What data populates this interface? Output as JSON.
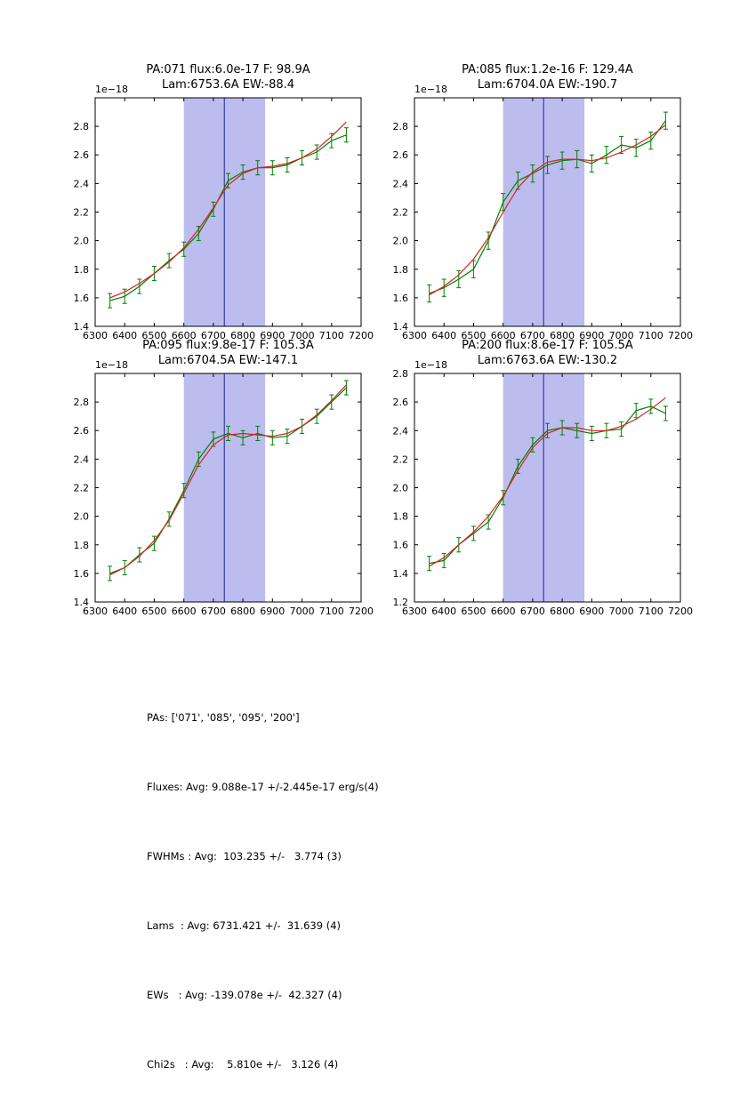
{
  "figure": {
    "background": "#ffffff"
  },
  "colors": {
    "data": "#007f00",
    "fit": "#d62222",
    "band": "#bcbcef",
    "vline": "#2020a0",
    "axis": "#000000"
  },
  "chart_data": [
    {
      "type": "line",
      "title_line1": "PA:071 flux:6.0e-17 F: 98.9A",
      "title_line2": "Lam:6753.6A EW:-88.4",
      "offset_label": "1e−18",
      "xlim": [
        6300,
        7200
      ],
      "ylim": [
        1.4,
        3.0
      ],
      "xticks": [
        6300,
        6400,
        6500,
        6600,
        6700,
        6800,
        6900,
        7000,
        7100,
        7200
      ],
      "yticks": [
        1.4,
        1.6,
        1.8,
        2.0,
        2.2,
        2.4,
        2.6,
        2.8
      ],
      "band": [
        6600,
        6875
      ],
      "vline": 6737,
      "x": [
        6350,
        6400,
        6450,
        6500,
        6550,
        6600,
        6650,
        6700,
        6750,
        6800,
        6850,
        6900,
        6950,
        7000,
        7050,
        7100,
        7150
      ],
      "series": [
        {
          "name": "spectrum",
          "values": [
            1.58,
            1.61,
            1.68,
            1.77,
            1.86,
            1.94,
            2.05,
            2.22,
            2.42,
            2.48,
            2.51,
            2.51,
            2.53,
            2.58,
            2.62,
            2.7,
            2.74
          ],
          "yerr": 0.05
        },
        {
          "name": "fit",
          "values": [
            1.6,
            1.64,
            1.7,
            1.77,
            1.85,
            1.95,
            2.08,
            2.23,
            2.39,
            2.47,
            2.51,
            2.52,
            2.54,
            2.58,
            2.64,
            2.73,
            2.83
          ]
        }
      ]
    },
    {
      "type": "line",
      "title_line1": "PA:085 flux:1.2e-16 F: 129.4A",
      "title_line2": "Lam:6704.0A EW:-190.7",
      "offset_label": "1e−18",
      "xlim": [
        6300,
        7200
      ],
      "ylim": [
        1.4,
        3.0
      ],
      "xticks": [
        6300,
        6400,
        6500,
        6600,
        6700,
        6800,
        6900,
        7000,
        7100,
        7200
      ],
      "yticks": [
        1.4,
        1.6,
        1.8,
        2.0,
        2.2,
        2.4,
        2.6,
        2.8
      ],
      "band": [
        6600,
        6875
      ],
      "vline": 6737,
      "x": [
        6350,
        6400,
        6450,
        6500,
        6550,
        6600,
        6650,
        6700,
        6750,
        6800,
        6850,
        6900,
        6950,
        7000,
        7050,
        7100,
        7150
      ],
      "series": [
        {
          "name": "spectrum",
          "values": [
            1.63,
            1.67,
            1.73,
            1.8,
            2.0,
            2.27,
            2.42,
            2.47,
            2.53,
            2.56,
            2.57,
            2.54,
            2.6,
            2.67,
            2.65,
            2.7,
            2.84
          ],
          "yerr": 0.06
        },
        {
          "name": "fit",
          "values": [
            1.62,
            1.68,
            1.76,
            1.87,
            2.02,
            2.2,
            2.37,
            2.48,
            2.55,
            2.57,
            2.57,
            2.56,
            2.58,
            2.62,
            2.67,
            2.73,
            2.81
          ]
        }
      ]
    },
    {
      "type": "line",
      "title_line1": "PA:095 flux:9.8e-17 F: 105.3A",
      "title_line2": "Lam:6704.5A EW:-147.1",
      "offset_label": "1e−18",
      "xlim": [
        6300,
        7200
      ],
      "ylim": [
        1.4,
        3.0
      ],
      "xticks": [
        6300,
        6400,
        6500,
        6600,
        6700,
        6800,
        6900,
        7000,
        7100,
        7200
      ],
      "yticks": [
        1.4,
        1.6,
        1.8,
        2.0,
        2.2,
        2.4,
        2.6,
        2.8
      ],
      "band": [
        6600,
        6875
      ],
      "vline": 6737,
      "x": [
        6350,
        6400,
        6450,
        6500,
        6550,
        6600,
        6650,
        6700,
        6750,
        6800,
        6850,
        6900,
        6950,
        7000,
        7050,
        7100,
        7150
      ],
      "series": [
        {
          "name": "spectrum",
          "values": [
            1.6,
            1.64,
            1.73,
            1.81,
            1.98,
            2.18,
            2.4,
            2.54,
            2.58,
            2.55,
            2.58,
            2.55,
            2.56,
            2.63,
            2.7,
            2.8,
            2.9
          ],
          "yerr": 0.05
        },
        {
          "name": "fit",
          "values": [
            1.59,
            1.64,
            1.72,
            1.83,
            1.97,
            2.16,
            2.36,
            2.5,
            2.57,
            2.58,
            2.57,
            2.56,
            2.58,
            2.63,
            2.71,
            2.81,
            2.92
          ]
        }
      ]
    },
    {
      "type": "line",
      "title_line1": "PA:200 flux:8.6e-17 F: 105.5A",
      "title_line2": "Lam:6763.6A EW:-130.2",
      "offset_label": "1e−18",
      "xlim": [
        6300,
        7200
      ],
      "ylim": [
        1.2,
        2.8
      ],
      "xticks": [
        6300,
        6400,
        6500,
        6600,
        6700,
        6800,
        6900,
        7000,
        7100,
        7200
      ],
      "yticks": [
        1.2,
        1.4,
        1.6,
        1.8,
        2.0,
        2.2,
        2.4,
        2.6,
        2.8
      ],
      "band": [
        6600,
        6875
      ],
      "vline": 6737,
      "x": [
        6350,
        6400,
        6450,
        6500,
        6550,
        6600,
        6650,
        6700,
        6750,
        6800,
        6850,
        6900,
        6950,
        7000,
        7050,
        7100,
        7150
      ],
      "series": [
        {
          "name": "spectrum",
          "values": [
            1.47,
            1.49,
            1.6,
            1.68,
            1.76,
            1.93,
            2.15,
            2.3,
            2.4,
            2.42,
            2.4,
            2.38,
            2.4,
            2.41,
            2.54,
            2.57,
            2.52
          ],
          "yerr": 0.05
        },
        {
          "name": "fit",
          "values": [
            1.45,
            1.51,
            1.6,
            1.69,
            1.8,
            1.94,
            2.12,
            2.28,
            2.38,
            2.42,
            2.42,
            2.4,
            2.4,
            2.43,
            2.48,
            2.55,
            2.63
          ]
        }
      ]
    }
  ],
  "summary": {
    "lines": [
      "PAs: ['071', '085', '095', '200']",
      "Fluxes: Avg: 9.088e-17 +/-2.445e-17 erg/s(4)",
      "FWHMs : Avg:  103.235 +/-   3.774 (3)",
      "Lams  : Avg: 6731.421 +/-  31.639 (4)",
      "EWs   : Avg: -139.078e +/-  42.327 (4)",
      "Chi2s   : Avg:    5.810e +/-   3.126 (4)"
    ]
  }
}
